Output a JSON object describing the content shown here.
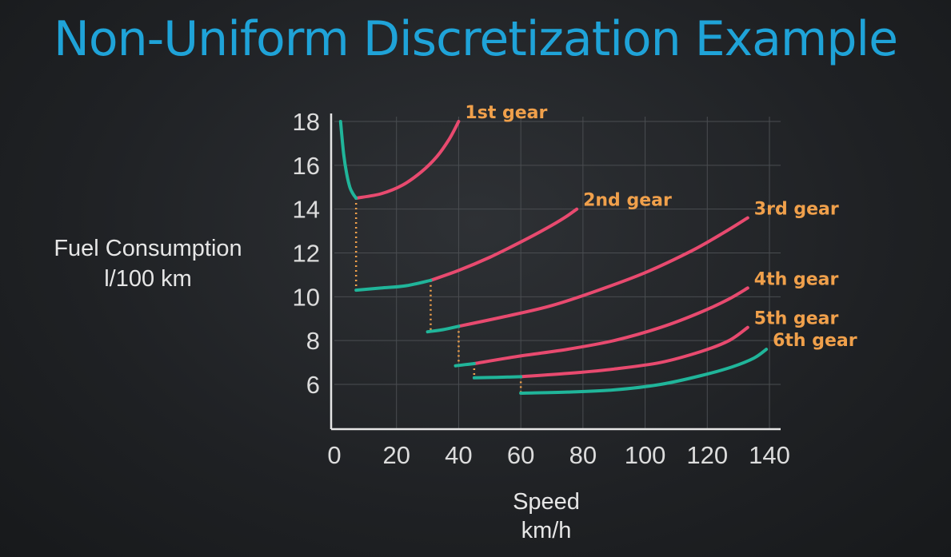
{
  "title": "Non-Uniform Discretization Example",
  "colors": {
    "title": "#1fa3d8",
    "selected_curve": "#20b59a",
    "other_curve": "#e84a6f",
    "shift_line": "#f0a04b",
    "gear_label": "#f0a04b"
  },
  "chart_data": {
    "type": "line",
    "title": "",
    "xlabel": "Speed",
    "xunit": "km/h",
    "ylabel": "Fuel Consumption",
    "yunit": "l/100 km",
    "xlim": [
      0,
      140
    ],
    "ylim": [
      4,
      18
    ],
    "xticks": [
      "0",
      "20",
      "40",
      "60",
      "80",
      "100",
      "120",
      "140"
    ],
    "yticks": [
      "18",
      "16",
      "14",
      "12",
      "10",
      "8",
      "6"
    ],
    "grid": true,
    "series": [
      {
        "name": "1st gear",
        "selected": {
          "x": [
            2,
            3,
            4,
            5,
            6,
            7
          ],
          "y": [
            18,
            16.5,
            15.6,
            15.0,
            14.7,
            14.5
          ]
        },
        "other": {
          "x": [
            7,
            15,
            22,
            28,
            33,
            37,
            40
          ],
          "y": [
            14.5,
            14.7,
            15.1,
            15.7,
            16.4,
            17.2,
            18
          ]
        }
      },
      {
        "name": "2nd gear",
        "selected": {
          "x": [
            7,
            15,
            23,
            31
          ],
          "y": [
            10.3,
            10.4,
            10.5,
            10.75
          ]
        },
        "other": {
          "x": [
            31,
            40,
            50,
            60,
            68,
            74,
            78
          ],
          "y": [
            10.75,
            11.2,
            11.8,
            12.5,
            13.1,
            13.6,
            14
          ]
        }
      },
      {
        "name": "3rd gear",
        "selected": {
          "x": [
            30,
            35,
            40
          ],
          "y": [
            8.4,
            8.5,
            8.65
          ]
        },
        "other": {
          "x": [
            40,
            55,
            70,
            85,
            100,
            115,
            125,
            133
          ],
          "y": [
            8.65,
            9.1,
            9.6,
            10.3,
            11.1,
            12.1,
            12.9,
            13.6
          ]
        }
      },
      {
        "name": "4th gear",
        "selected": {
          "x": [
            39,
            42,
            45
          ],
          "y": [
            6.85,
            6.9,
            6.95
          ]
        },
        "other": {
          "x": [
            45,
            60,
            75,
            90,
            105,
            118,
            127,
            133
          ],
          "y": [
            6.95,
            7.3,
            7.6,
            8.0,
            8.6,
            9.3,
            9.9,
            10.4
          ]
        }
      },
      {
        "name": "5th gear",
        "selected": {
          "x": [
            45,
            52,
            60
          ],
          "y": [
            6.3,
            6.32,
            6.35
          ]
        },
        "other": {
          "x": [
            60,
            75,
            90,
            105,
            118,
            127,
            133
          ],
          "y": [
            6.35,
            6.5,
            6.7,
            7.0,
            7.5,
            8.0,
            8.6
          ]
        }
      },
      {
        "name": "6th gear",
        "selected": {
          "x": [
            60,
            75,
            90,
            105,
            118,
            128,
            135,
            139
          ],
          "y": [
            5.6,
            5.65,
            5.75,
            6.0,
            6.4,
            6.8,
            7.2,
            7.6
          ]
        },
        "other": {
          "x": [],
          "y": []
        }
      }
    ],
    "shift_lines": [
      {
        "x": 7,
        "y_from": 14.5,
        "y_to": 10.3
      },
      {
        "x": 31,
        "y_from": 10.75,
        "y_to": 8.4
      },
      {
        "x": 40,
        "y_from": 8.65,
        "y_to": 6.85
      },
      {
        "x": 45,
        "y_from": 6.95,
        "y_to": 6.3
      },
      {
        "x": 60,
        "y_from": 6.35,
        "y_to": 5.6
      }
    ]
  }
}
